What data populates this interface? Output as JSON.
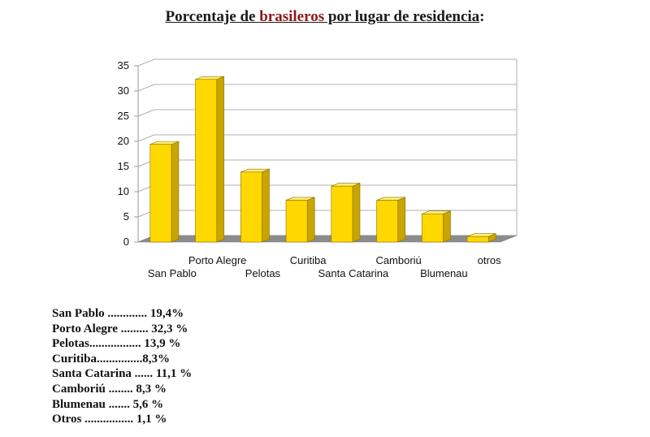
{
  "title": {
    "before": "Porcentaje de ",
    "highlight": "brasileros",
    "after": " por lugar de residencia",
    "suffix": ":"
  },
  "chart_data": {
    "type": "bar",
    "categories": [
      "San Pablo",
      "Porto Alegre",
      "Pelotas",
      "Curitiba",
      "Santa Catarina",
      "Camboriú",
      "Blumenau",
      "otros"
    ],
    "values": [
      19.4,
      32.3,
      13.9,
      8.3,
      11.1,
      8.3,
      5.6,
      1.1
    ],
    "ylim": [
      0,
      35
    ],
    "yticks": [
      "0",
      "5",
      "10",
      "15",
      "20",
      "25",
      "30",
      "35"
    ],
    "grid": true,
    "three_d": true,
    "bar_color": "#ffd800",
    "bar_side_color": "#c9a500",
    "bar_top_color": "#fff07a",
    "floor_color": "#8c8c8c"
  },
  "summary": [
    "San Pablo ............. 19,4%",
    "Porto Alegre ......... 32,3 %",
    "Pelotas................. 13,9 %",
    "Curitiba...............8,3%",
    "Santa Catarina ...... 11,1 %",
    "Camboriú ........ 8,3 %",
    "Blumenau ....... 5,6 %",
    "Otros ................ 1,1 %"
  ]
}
